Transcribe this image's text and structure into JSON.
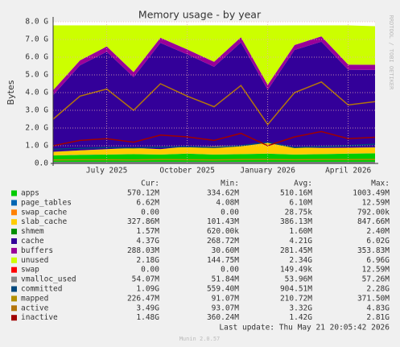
{
  "chart_data": {
    "type": "stacked_area",
    "title": "Memory usage - by year",
    "y_label": "Bytes",
    "side_text": "RRDTOOL / TOBI OETIKER",
    "categories": [
      null,
      null,
      "July 2025",
      null,
      null,
      "October 2025",
      null,
      null,
      "January 2026",
      null,
      null,
      "April 2026",
      null
    ],
    "ylim": [
      0,
      8
    ],
    "yticks": [
      {
        "value": 0,
        "label": "0.0"
      },
      {
        "value": 1,
        "label": "1.0 G"
      },
      {
        "value": 2,
        "label": "2.0 G"
      },
      {
        "value": 3,
        "label": "3.0 G"
      },
      {
        "value": 4,
        "label": "4.0 G"
      },
      {
        "value": 5,
        "label": "5.0 G"
      },
      {
        "value": 6,
        "label": "6.0 G"
      },
      {
        "value": 7,
        "label": "7.0 G"
      },
      {
        "value": 8,
        "label": "8.0 G"
      }
    ],
    "grid": true,
    "legend_headers": [
      "Cur:",
      "Min:",
      "Avg:",
      "Max:"
    ],
    "series": [
      {
        "name": "apps",
        "color": "#00cc00",
        "stack": true,
        "values": [
          0.45,
          0.48,
          0.5,
          0.52,
          0.5,
          0.55,
          0.5,
          0.52,
          0.55,
          0.5,
          0.52,
          0.55,
          0.57
        ],
        "cur": "570.12M",
        "min": "334.62M",
        "avg": "510.16M",
        "max": "1003.49M"
      },
      {
        "name": "page_tables",
        "color": "#0066b3",
        "stack": true,
        "values": [
          0.006,
          0.006,
          0.006,
          0.006,
          0.006,
          0.006,
          0.006,
          0.006,
          0.006,
          0.006,
          0.006,
          0.006,
          0.006
        ],
        "cur": "6.62M",
        "min": "4.08M",
        "avg": "6.10M",
        "max": "12.59M"
      },
      {
        "name": "swap_cache",
        "color": "#ff8000",
        "stack": true,
        "values": [
          0,
          0,
          0,
          0,
          0,
          0,
          0,
          0,
          0,
          0,
          0,
          0,
          0
        ],
        "cur": "0.00",
        "min": "0.00",
        "avg": "28.75k",
        "max": "792.00k"
      },
      {
        "name": "slab_cache",
        "color": "#ffcc00",
        "stack": true,
        "values": [
          0.2,
          0.25,
          0.3,
          0.35,
          0.3,
          0.4,
          0.45,
          0.5,
          0.6,
          0.4,
          0.35,
          0.33,
          0.33
        ],
        "cur": "327.86M",
        "min": "101.43M",
        "avg": "386.13M",
        "max": "847.66M"
      },
      {
        "name": "shmem",
        "color": "#008f00",
        "stack": true,
        "values": [
          0.0016,
          0.0016,
          0.0016,
          0.0016,
          0.0016,
          0.0016,
          0.0016,
          0.0016,
          0.0016,
          0.0016,
          0.0016,
          0.0016,
          0.0016
        ],
        "cur": "1.57M",
        "min": "620.00k",
        "avg": "1.60M",
        "max": "2.40M"
      },
      {
        "name": "cache",
        "color": "#330099",
        "stack": true,
        "values": [
          3.2,
          4.8,
          5.5,
          4.0,
          6.0,
          5.2,
          4.5,
          5.8,
          3.0,
          5.5,
          6.0,
          4.4,
          4.37
        ],
        "cur": "4.37G",
        "min": "268.72M",
        "avg": "4.21G",
        "max": "6.02G"
      },
      {
        "name": "buffers",
        "color": "#990099",
        "stack": true,
        "values": [
          0.28,
          0.28,
          0.3,
          0.28,
          0.29,
          0.28,
          0.28,
          0.3,
          0.28,
          0.28,
          0.3,
          0.29,
          0.29
        ],
        "cur": "288.03M",
        "min": "30.60M",
        "avg": "281.45M",
        "max": "353.83M"
      },
      {
        "name": "unused",
        "color": "#ccff00",
        "stack": true,
        "values": [
          3.66,
          1.98,
          1.19,
          2.64,
          0.69,
          1.35,
          2.06,
          0.66,
          3.35,
          1.11,
          0.62,
          2.22,
          2.18
        ],
        "cur": "2.18G",
        "min": "144.75M",
        "avg": "2.34G",
        "max": "6.96G"
      },
      {
        "name": "swap",
        "color": "#ff0000",
        "stack": true,
        "values": [
          0,
          0,
          0,
          0,
          0,
          0,
          0,
          0,
          0,
          0,
          0,
          0,
          0
        ],
        "cur": "0.00",
        "min": "0.00",
        "avg": "149.49k",
        "max": "12.59M"
      },
      {
        "name": "vmalloc_used",
        "color": "#888888",
        "stack": false,
        "values": [
          0.054,
          0.054,
          0.054,
          0.054,
          0.054,
          0.054,
          0.054,
          0.054,
          0.054,
          0.054,
          0.054,
          0.054,
          0.054
        ],
        "cur": "54.07M",
        "min": "51.84M",
        "avg": "53.96M",
        "max": "57.26M"
      },
      {
        "name": "committed",
        "color": "#00487d",
        "stack": false,
        "values": [
          0.8,
          0.85,
          0.9,
          0.88,
          0.92,
          0.95,
          0.9,
          1.0,
          1.2,
          0.9,
          0.95,
          1.0,
          1.09
        ],
        "cur": "1.09G",
        "min": "559.40M",
        "avg": "904.51M",
        "max": "2.28G"
      },
      {
        "name": "mapped",
        "color": "#b38f00",
        "stack": false,
        "values": [
          0.2,
          0.21,
          0.21,
          0.2,
          0.22,
          0.21,
          0.2,
          0.22,
          0.23,
          0.21,
          0.22,
          0.22,
          0.23
        ],
        "cur": "226.47M",
        "min": "91.07M",
        "avg": "210.72M",
        "max": "371.50M"
      },
      {
        "name": "active",
        "color": "#b3750b",
        "stack": false,
        "values": [
          2.5,
          3.8,
          4.2,
          3.0,
          4.5,
          3.8,
          3.2,
          4.4,
          2.2,
          4.0,
          4.6,
          3.3,
          3.49
        ],
        "cur": "3.49G",
        "min": "93.07M",
        "avg": "3.32G",
        "max": "4.83G"
      },
      {
        "name": "inactive",
        "color": "#a00000",
        "stack": false,
        "values": [
          1.0,
          1.3,
          1.4,
          1.2,
          1.6,
          1.5,
          1.3,
          1.7,
          1.0,
          1.5,
          1.8,
          1.4,
          1.48
        ],
        "cur": "1.48G",
        "min": "360.24M",
        "avg": "1.42G",
        "max": "2.81G"
      }
    ],
    "last_update": "Last update: Thu May 21 20:05:42 2026",
    "footer": "Munin 2.0.57"
  }
}
